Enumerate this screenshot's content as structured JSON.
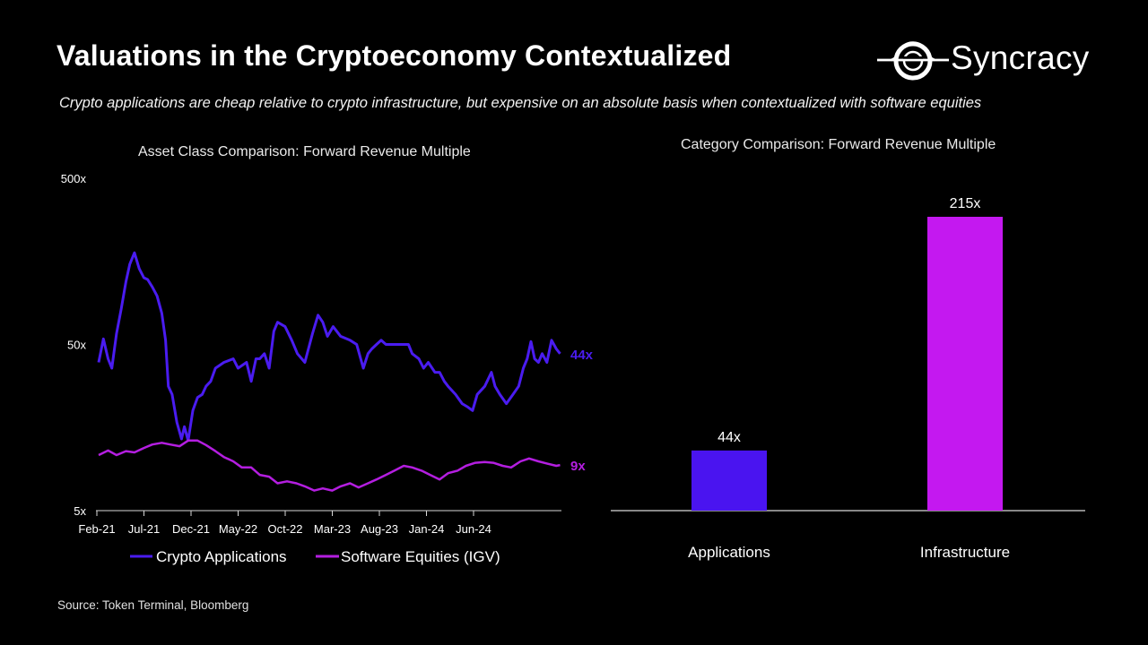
{
  "header": {
    "title": "Valuations in the Cryptoeconomy Contextualized",
    "subtitle": "Crypto applications are cheap relative to crypto infrastructure, but expensive on an absolute basis when contextualized with software equities",
    "logo_text": "Syncracy",
    "logo_icon": "eclipse-ring-icon"
  },
  "source": "Source: Token Terminal, Bloomberg",
  "colors": {
    "background": "#000000",
    "crypto_applications": "#4a1cf0",
    "software_equities": "#b41ee0",
    "applications_bar": "#4a14f0",
    "infrastructure_bar": "#c418f0",
    "axis": "#d9d9d9",
    "text": "#ffffff"
  },
  "chart_data": [
    {
      "type": "line",
      "title": "Asset Class Comparison: Forward Revenue Multiple",
      "xlabel": "",
      "ylabel": "",
      "yscale": "log",
      "ylim": [
        5,
        500
      ],
      "yticks": [
        5,
        50,
        500
      ],
      "ytick_labels": [
        "5x",
        "50x",
        "500x"
      ],
      "x_unit": "months since Feb-21",
      "xlim": [
        0,
        45
      ],
      "xticks": [
        0,
        5,
        10,
        15,
        20,
        25,
        30,
        35,
        40
      ],
      "xtick_labels": [
        "Feb-21",
        "Jul-21",
        "Dec-21",
        "May-22",
        "Oct-22",
        "Mar-23",
        "Aug-23",
        "Jan-24",
        "Jun-24"
      ],
      "grid": false,
      "legend": "bottom",
      "series": [
        {
          "name": "Crypto Applications",
          "end_label": "44x",
          "points": [
            [
              0,
              39
            ],
            [
              0.5,
              54
            ],
            [
              1,
              41
            ],
            [
              1.4,
              36
            ],
            [
              1.9,
              58
            ],
            [
              2.4,
              82
            ],
            [
              2.9,
              119
            ],
            [
              3.3,
              152
            ],
            [
              3.8,
              178
            ],
            [
              4.3,
              143
            ],
            [
              4.8,
              126
            ],
            [
              5.2,
              123
            ],
            [
              5.7,
              111
            ],
            [
              6.2,
              98
            ],
            [
              6.7,
              77
            ],
            [
              7.1,
              53
            ],
            [
              7.4,
              28
            ],
            [
              7.8,
              25
            ],
            [
              8.3,
              17
            ],
            [
              8.8,
              13.5
            ],
            [
              9.1,
              16
            ],
            [
              9.5,
              13.2
            ],
            [
              10,
              20
            ],
            [
              10.5,
              24
            ],
            [
              11,
              25
            ],
            [
              11.4,
              28
            ],
            [
              11.9,
              30
            ],
            [
              12.4,
              36
            ],
            [
              13.3,
              39
            ],
            [
              14.3,
              41
            ],
            [
              14.8,
              36
            ],
            [
              15.7,
              39
            ],
            [
              16.2,
              30
            ],
            [
              16.7,
              41
            ],
            [
              17.1,
              41
            ],
            [
              17.6,
              44
            ],
            [
              18.1,
              36
            ],
            [
              18.6,
              60
            ],
            [
              19,
              68
            ],
            [
              19.8,
              64
            ],
            [
              20.5,
              53
            ],
            [
              21.1,
              44
            ],
            [
              21.9,
              39
            ],
            [
              22.7,
              58
            ],
            [
              23.3,
              75
            ],
            [
              23.8,
              68
            ],
            [
              24.3,
              56
            ],
            [
              24.9,
              64
            ],
            [
              25.7,
              56
            ],
            [
              26.7,
              53
            ],
            [
              27.4,
              50
            ],
            [
              28.1,
              36
            ],
            [
              28.6,
              44
            ],
            [
              29,
              47
            ],
            [
              29.5,
              50
            ],
            [
              30,
              53
            ],
            [
              30.5,
              50
            ],
            [
              31.4,
              50
            ],
            [
              32.4,
              50
            ],
            [
              32.9,
              50
            ],
            [
              33.3,
              44
            ],
            [
              34,
              41
            ],
            [
              34.5,
              36
            ],
            [
              35.0,
              39
            ],
            [
              35.7,
              34
            ],
            [
              36.2,
              34
            ],
            [
              36.7,
              30
            ],
            [
              37.1,
              28
            ],
            [
              37.9,
              25
            ],
            [
              38.6,
              22
            ],
            [
              39.2,
              21
            ],
            [
              39.7,
              20
            ],
            [
              40.2,
              25
            ],
            [
              41,
              28
            ],
            [
              41.7,
              34
            ],
            [
              42.1,
              28
            ],
            [
              42.6,
              25
            ],
            [
              43.3,
              22
            ],
            [
              44,
              25
            ],
            [
              44.6,
              28
            ],
            [
              45.1,
              36
            ],
            [
              45.5,
              41
            ],
            [
              45.9,
              52
            ],
            [
              46.3,
              41
            ],
            [
              46.7,
              39
            ],
            [
              47.1,
              44
            ],
            [
              47.6,
              39
            ],
            [
              48.1,
              53
            ],
            [
              48.6,
              47
            ],
            [
              49.0,
              44
            ]
          ]
        },
        {
          "name": "Software Equities (IGV)",
          "end_label": "9x",
          "points": [
            [
              0,
              10.8
            ],
            [
              1,
              11.5
            ],
            [
              1.9,
              10.8
            ],
            [
              2.9,
              11.4
            ],
            [
              3.8,
              11.2
            ],
            [
              4.8,
              11.9
            ],
            [
              5.7,
              12.5
            ],
            [
              6.7,
              12.8
            ],
            [
              7.6,
              12.5
            ],
            [
              8.6,
              12.2
            ],
            [
              9.5,
              13.2
            ],
            [
              10.5,
              13.2
            ],
            [
              11.4,
              12.4
            ],
            [
              12.4,
              11.4
            ],
            [
              13.3,
              10.5
            ],
            [
              14.3,
              9.9
            ],
            [
              15.2,
              9.1
            ],
            [
              16.2,
              9.1
            ],
            [
              17.1,
              8.2
            ],
            [
              18.1,
              8.0
            ],
            [
              19,
              7.3
            ],
            [
              20,
              7.5
            ],
            [
              21,
              7.3
            ],
            [
              21.9,
              7.0
            ],
            [
              22.9,
              6.6
            ],
            [
              23.8,
              6.8
            ],
            [
              24.8,
              6.6
            ],
            [
              25.7,
              7.0
            ],
            [
              26.7,
              7.3
            ],
            [
              27.6,
              6.9
            ],
            [
              28.6,
              7.3
            ],
            [
              29.5,
              7.7
            ],
            [
              30.5,
              8.2
            ],
            [
              31.4,
              8.7
            ],
            [
              32.4,
              9.3
            ],
            [
              33.3,
              9.1
            ],
            [
              34.3,
              8.7
            ],
            [
              35.2,
              8.2
            ],
            [
              36.2,
              7.7
            ],
            [
              37.1,
              8.4
            ],
            [
              38.1,
              8.7
            ],
            [
              39,
              9.3
            ],
            [
              40,
              9.7
            ],
            [
              41,
              9.8
            ],
            [
              41.9,
              9.7
            ],
            [
              42.9,
              9.3
            ],
            [
              43.8,
              9.1
            ],
            [
              44.8,
              9.9
            ],
            [
              45.7,
              10.3
            ],
            [
              46.7,
              9.9
            ],
            [
              47.6,
              9.6
            ],
            [
              48.6,
              9.3
            ],
            [
              49.0,
              9.4
            ]
          ]
        }
      ]
    },
    {
      "type": "bar",
      "title": "Category Comparison: Forward Revenue Multiple",
      "categories": [
        "Applications",
        "Infrastructure"
      ],
      "values": [
        44,
        215
      ],
      "value_labels": [
        "44x",
        "215x"
      ],
      "ylim": [
        0,
        215
      ],
      "xlabel": "",
      "ylabel": "",
      "grid": false,
      "legend": "none"
    }
  ]
}
